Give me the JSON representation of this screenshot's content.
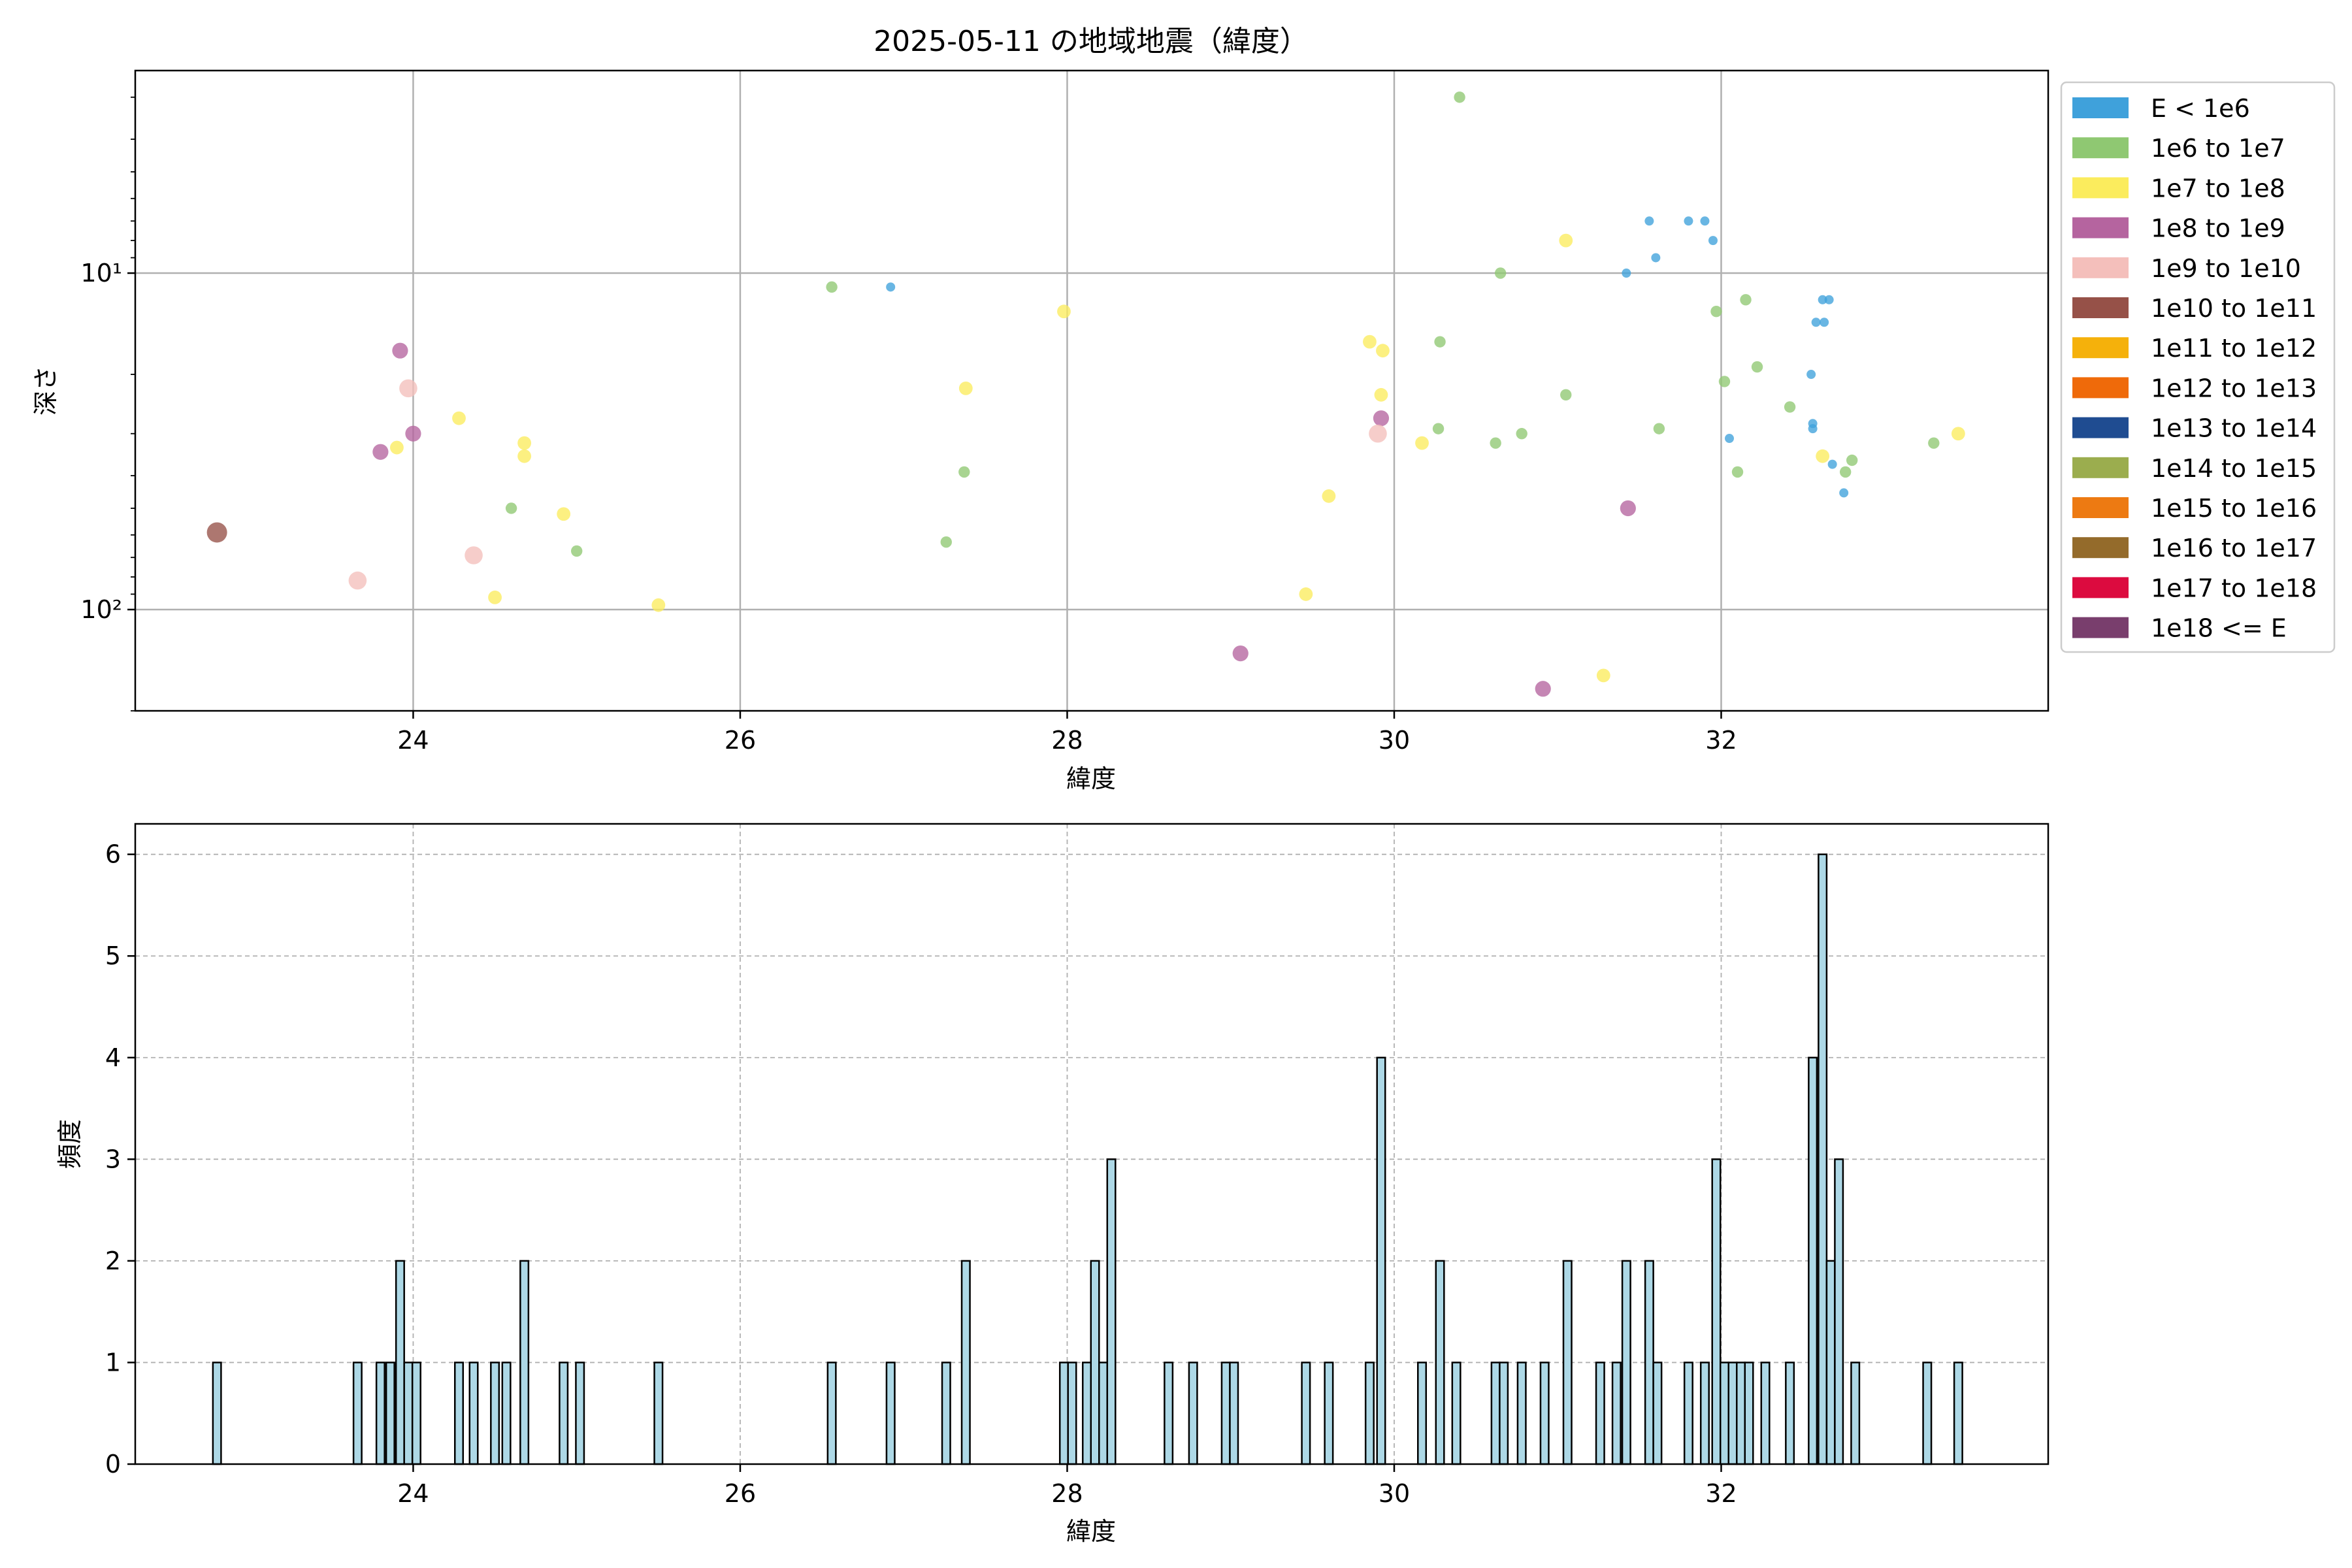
{
  "chart_data": [
    {
      "type": "scatter",
      "title": "2025-05-11 の地域地震（緯度）",
      "xlabel": "緯度",
      "ylabel": "深さ",
      "xlim": [
        22.3,
        34.0
      ],
      "ylim": [
        200,
        2.5
      ],
      "yscale": "log",
      "y_inverted": true,
      "grid": true,
      "x_ticks": [
        24,
        26,
        28,
        30,
        32
      ],
      "x_tick_labels": [
        "24",
        "26",
        "28",
        "30",
        "32"
      ],
      "y_ticks": [
        10,
        100
      ],
      "y_tick_labels": [
        "10¹",
        "10²"
      ],
      "legend_position": "outside-right",
      "legend": [
        {
          "label": "E < 1e6",
          "color": "#3fa1db"
        },
        {
          "label": "1e6 to 1e7",
          "color": "#8fc872"
        },
        {
          "label": "1e7 to 1e8",
          "color": "#fbec5d"
        },
        {
          "label": "1e8 to 1e9",
          "color": "#b5649f"
        },
        {
          "label": "1e9 to 1e10",
          "color": "#f4bfbb"
        },
        {
          "label": "1e10 to 1e11",
          "color": "#965148"
        },
        {
          "label": "1e11 to 1e12",
          "color": "#f5b10b"
        },
        {
          "label": "1e12 to 1e13",
          "color": "#ef6a0a"
        },
        {
          "label": "1e13 to 1e14",
          "color": "#1f4c91"
        },
        {
          "label": "1e14 to 1e15",
          "color": "#9bad4e"
        },
        {
          "label": "1e15 to 1e16",
          "color": "#ed7a12"
        },
        {
          "label": "1e16 to 1e17",
          "color": "#946b2b"
        },
        {
          "label": "1e17 to 1e18",
          "color": "#dc0b3f"
        },
        {
          "label": "1e18 <= E",
          "color": "#793e6d"
        }
      ],
      "series": [
        {
          "class": 0,
          "points": [
            [
              26.92,
              11
            ],
            [
              31.42,
              10
            ],
            [
              31.6,
              9
            ],
            [
              31.56,
              7
            ],
            [
              31.8,
              7
            ],
            [
              31.9,
              7
            ],
            [
              31.95,
              8
            ],
            [
              32.62,
              12
            ],
            [
              32.66,
              12
            ],
            [
              32.58,
              14
            ],
            [
              32.63,
              14
            ],
            [
              32.55,
              20
            ],
            [
              32.56,
              28
            ],
            [
              32.56,
              29
            ],
            [
              32.05,
              31
            ],
            [
              32.68,
              37
            ],
            [
              32.75,
              45
            ]
          ]
        },
        {
          "class": 1,
          "points": [
            [
              26.56,
              11
            ],
            [
              30.4,
              3
            ],
            [
              30.65,
              10
            ],
            [
              31.97,
              13
            ],
            [
              32.15,
              12
            ],
            [
              30.28,
              16
            ],
            [
              31.05,
              23
            ],
            [
              32.22,
              19
            ],
            [
              32.02,
              21
            ],
            [
              32.42,
              25
            ],
            [
              31.62,
              29
            ],
            [
              30.27,
              29
            ],
            [
              30.78,
              30
            ],
            [
              30.62,
              32
            ],
            [
              32.1,
              39
            ],
            [
              32.76,
              39
            ],
            [
              32.8,
              36
            ],
            [
              33.3,
              32
            ],
            [
              24.6,
              50
            ],
            [
              27.37,
              39
            ],
            [
              27.26,
              63
            ],
            [
              25.0,
              67
            ]
          ]
        },
        {
          "class": 2,
          "points": [
            [
              31.05,
              8
            ],
            [
              27.98,
              13
            ],
            [
              29.85,
              16
            ],
            [
              29.93,
              17
            ],
            [
              27.38,
              22
            ],
            [
              24.28,
              27
            ],
            [
              24.68,
              32
            ],
            [
              24.68,
              35
            ],
            [
              23.9,
              33
            ],
            [
              29.92,
              23
            ],
            [
              30.17,
              32
            ],
            [
              32.62,
              35
            ],
            [
              29.6,
              46
            ],
            [
              24.92,
              52
            ],
            [
              29.46,
              90
            ],
            [
              24.5,
              92
            ],
            [
              25.5,
              97
            ],
            [
              31.28,
              157
            ],
            [
              33.45,
              30
            ]
          ]
        },
        {
          "class": 3,
          "points": [
            [
              23.92,
              17
            ],
            [
              23.8,
              34
            ],
            [
              24.0,
              30
            ],
            [
              29.92,
              27
            ],
            [
              31.43,
              50
            ],
            [
              29.06,
              135
            ],
            [
              30.91,
              172
            ]
          ]
        },
        {
          "class": 4,
          "points": [
            [
              23.97,
              22
            ],
            [
              29.9,
              30
            ],
            [
              24.37,
              69
            ],
            [
              23.66,
              82
            ]
          ]
        },
        {
          "class": 5,
          "points": [
            [
              22.8,
              59
            ]
          ]
        }
      ]
    },
    {
      "type": "bar",
      "xlabel": "緯度",
      "ylabel": "頻度",
      "xlim": [
        22.3,
        34.0
      ],
      "ylim": [
        0,
        6.3
      ],
      "grid": true,
      "x_ticks": [
        24,
        26,
        28,
        30,
        32
      ],
      "x_tick_labels": [
        "24",
        "26",
        "28",
        "30",
        "32"
      ],
      "y_ticks": [
        0,
        1,
        2,
        3,
        4,
        5,
        6
      ],
      "y_tick_labels": [
        "0",
        "1",
        "2",
        "3",
        "4",
        "5",
        "6"
      ],
      "bar_color": "#add8e6",
      "bin_width": 0.05,
      "bins": [
        [
          22.8,
          1
        ],
        [
          23.66,
          1
        ],
        [
          23.8,
          1
        ],
        [
          23.86,
          1
        ],
        [
          23.92,
          2
        ],
        [
          23.97,
          1
        ],
        [
          24.02,
          1
        ],
        [
          24.28,
          1
        ],
        [
          24.37,
          1
        ],
        [
          24.5,
          1
        ],
        [
          24.57,
          1
        ],
        [
          24.68,
          2
        ],
        [
          24.92,
          1
        ],
        [
          25.02,
          1
        ],
        [
          25.5,
          1
        ],
        [
          26.56,
          1
        ],
        [
          26.92,
          1
        ],
        [
          27.26,
          1
        ],
        [
          27.38,
          2
        ],
        [
          27.98,
          1
        ],
        [
          28.03,
          1
        ],
        [
          28.12,
          1
        ],
        [
          28.17,
          2
        ],
        [
          28.22,
          1
        ],
        [
          28.27,
          3
        ],
        [
          28.62,
          1
        ],
        [
          28.77,
          1
        ],
        [
          28.97,
          1
        ],
        [
          29.02,
          1
        ],
        [
          29.46,
          1
        ],
        [
          29.6,
          1
        ],
        [
          29.85,
          1
        ],
        [
          29.92,
          4
        ],
        [
          30.17,
          1
        ],
        [
          30.28,
          2
        ],
        [
          30.38,
          1
        ],
        [
          30.62,
          1
        ],
        [
          30.67,
          1
        ],
        [
          30.78,
          1
        ],
        [
          30.92,
          1
        ],
        [
          31.06,
          2
        ],
        [
          31.26,
          1
        ],
        [
          31.36,
          1
        ],
        [
          31.42,
          2
        ],
        [
          31.56,
          2
        ],
        [
          31.61,
          1
        ],
        [
          31.8,
          1
        ],
        [
          31.9,
          1
        ],
        [
          31.97,
          3
        ],
        [
          32.02,
          1
        ],
        [
          32.07,
          1
        ],
        [
          32.12,
          1
        ],
        [
          32.17,
          1
        ],
        [
          32.27,
          1
        ],
        [
          32.42,
          1
        ],
        [
          32.56,
          4
        ],
        [
          32.62,
          6
        ],
        [
          32.67,
          2
        ],
        [
          32.72,
          3
        ],
        [
          32.82,
          1
        ],
        [
          33.26,
          1
        ],
        [
          33.45,
          1
        ]
      ]
    }
  ]
}
